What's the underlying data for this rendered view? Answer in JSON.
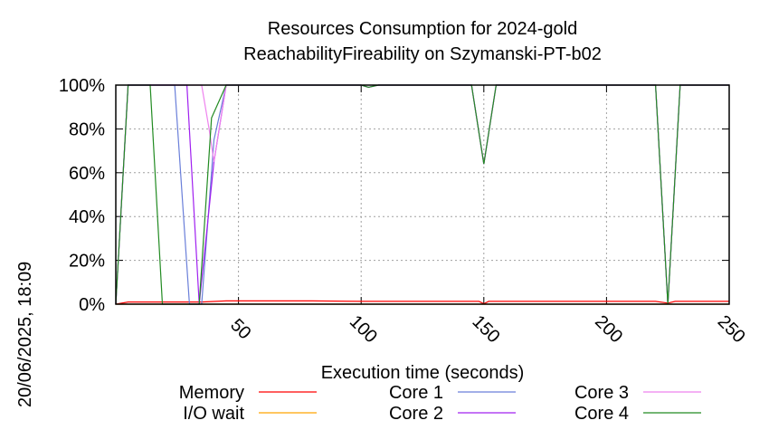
{
  "chart_data": {
    "type": "line",
    "title_line1": "Resources Consumption for 2024-gold",
    "title_line2": "ReachabilityFireability on Szymanski-PT-b02",
    "xlabel": "Execution time (seconds)",
    "ylabel": "",
    "timestamp": "20/06/2025, 18:09",
    "xlim": [
      0,
      250
    ],
    "ylim": [
      0,
      100
    ],
    "x_ticks": [
      50,
      100,
      150,
      200,
      250
    ],
    "y_ticks": [
      0,
      20,
      40,
      60,
      80,
      100
    ],
    "y_tick_labels": [
      "0%",
      "20%",
      "40%",
      "60%",
      "80%",
      "100%"
    ],
    "grid": true,
    "legend_placement": "bottom",
    "series": [
      {
        "name": "Memory",
        "color": "#ff0000",
        "points": [
          [
            0,
            0
          ],
          [
            5,
            1
          ],
          [
            20,
            1
          ],
          [
            35,
            1
          ],
          [
            45,
            1.5
          ],
          [
            60,
            1.5
          ],
          [
            80,
            1.5
          ],
          [
            100,
            1.3
          ],
          [
            140,
            1.3
          ],
          [
            148,
            1.3
          ],
          [
            150,
            0.2
          ],
          [
            152,
            1.3
          ],
          [
            175,
            1.3
          ],
          [
            200,
            1.3
          ],
          [
            220,
            1.3
          ],
          [
            225,
            0.5
          ],
          [
            228,
            1.3
          ],
          [
            250,
            1.3
          ]
        ]
      },
      {
        "name": "I/O wait",
        "color": "#ffa500",
        "points": [
          [
            0,
            0
          ],
          [
            250,
            0
          ]
        ]
      },
      {
        "name": "Core 1",
        "color": "#6a7fd9",
        "points": [
          [
            0,
            0
          ],
          [
            5,
            100
          ],
          [
            24,
            100
          ],
          [
            30,
            0
          ],
          [
            35,
            0
          ],
          [
            40,
            75
          ],
          [
            45,
            100
          ],
          [
            100,
            100
          ],
          [
            103,
            99
          ],
          [
            107,
            100
          ],
          [
            145,
            100
          ],
          [
            150,
            64
          ],
          [
            155,
            100
          ],
          [
            220,
            100
          ],
          [
            225,
            0
          ],
          [
            230,
            100
          ],
          [
            250,
            100
          ]
        ]
      },
      {
        "name": "Core 2",
        "color": "#a020f0",
        "points": [
          [
            0,
            0
          ],
          [
            5,
            100
          ],
          [
            29,
            100
          ],
          [
            34,
            0
          ],
          [
            40,
            65
          ],
          [
            45,
            100
          ],
          [
            100,
            100
          ],
          [
            103,
            99
          ],
          [
            107,
            100
          ],
          [
            145,
            100
          ],
          [
            150,
            64
          ],
          [
            155,
            100
          ],
          [
            220,
            100
          ],
          [
            225,
            0
          ],
          [
            230,
            100
          ],
          [
            250,
            100
          ]
        ]
      },
      {
        "name": "Core 3",
        "color": "#ee82ee",
        "points": [
          [
            0,
            0
          ],
          [
            5,
            100
          ],
          [
            35,
            100
          ],
          [
            38,
            80
          ],
          [
            40,
            65
          ],
          [
            45,
            100
          ],
          [
            100,
            100
          ],
          [
            103,
            99
          ],
          [
            107,
            100
          ],
          [
            145,
            100
          ],
          [
            150,
            64
          ],
          [
            155,
            100
          ],
          [
            220,
            100
          ],
          [
            225,
            0
          ],
          [
            230,
            100
          ],
          [
            250,
            100
          ]
        ]
      },
      {
        "name": "Core 4",
        "color": "#228b22",
        "points": [
          [
            0,
            0
          ],
          [
            5,
            100
          ],
          [
            14,
            100
          ],
          [
            19,
            0
          ],
          [
            34,
            0
          ],
          [
            39,
            85
          ],
          [
            45,
            100
          ],
          [
            100,
            100
          ],
          [
            103,
            99
          ],
          [
            107,
            100
          ],
          [
            145,
            100
          ],
          [
            150,
            64
          ],
          [
            155,
            100
          ],
          [
            220,
            100
          ],
          [
            225,
            0
          ],
          [
            230,
            100
          ],
          [
            250,
            100
          ]
        ]
      }
    ]
  }
}
